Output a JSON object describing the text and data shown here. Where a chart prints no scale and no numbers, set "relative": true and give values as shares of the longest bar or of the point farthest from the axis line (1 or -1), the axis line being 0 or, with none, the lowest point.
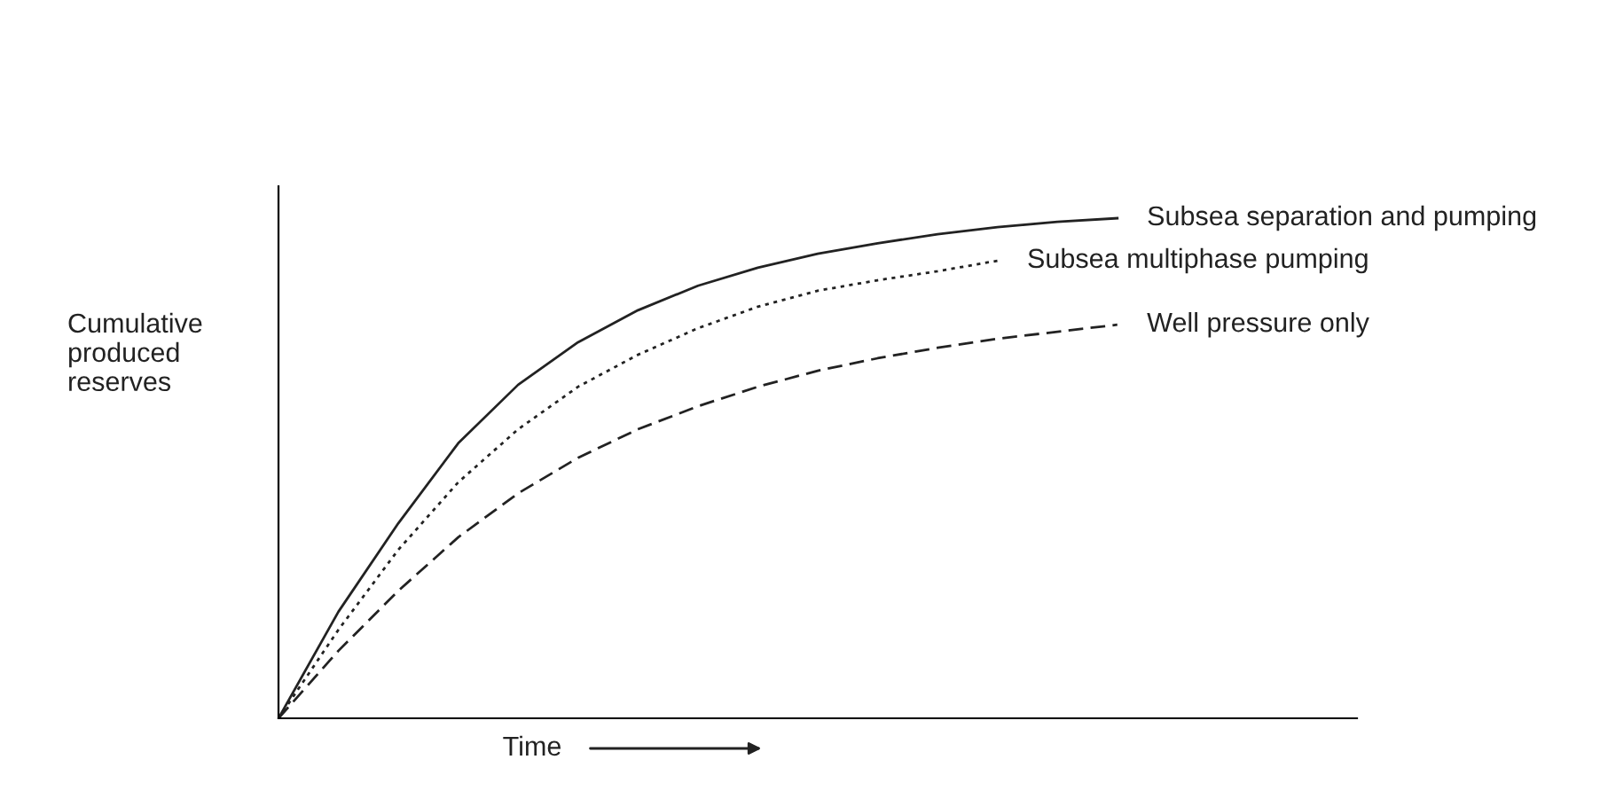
{
  "chart_data": {
    "type": "line",
    "relative": true,
    "xlabel": "Time",
    "ylabel": "Cumulative produced reserves",
    "tick_labels": false,
    "grid": false,
    "legend": false,
    "marker": "none",
    "categories": [
      null,
      null,
      null,
      null,
      null,
      null,
      null,
      null,
      null,
      null,
      null,
      null,
      null,
      null,
      null,
      null,
      null,
      null,
      null
    ],
    "series": [
      {
        "name": "Subsea separation and pumping",
        "color": "#222222",
        "line_style": "solid",
        "values": [
          0,
          0.213,
          0.39,
          0.55,
          0.667,
          0.752,
          0.816,
          0.865,
          0.901,
          0.929,
          0.95,
          0.968,
          0.982,
          0.993,
          1,
          null,
          null,
          null,
          null
        ]
      },
      {
        "name": "Subsea multiphase pumping",
        "color": "#222222",
        "line_style": "dotted",
        "values": [
          0,
          0.177,
          0.337,
          0.472,
          0.578,
          0.663,
          0.727,
          0.78,
          0.823,
          0.855,
          0.876,
          0.894,
          0.915,
          null,
          null,
          null,
          null,
          null,
          null
        ]
      },
      {
        "name": "Well pressure only",
        "color": "#222222",
        "line_style": "dashed",
        "values": [
          0,
          0.135,
          0.255,
          0.362,
          0.45,
          0.521,
          0.578,
          0.624,
          0.663,
          0.695,
          0.72,
          0.741,
          0.759,
          0.773,
          0.787,
          null,
          null,
          null,
          null
        ]
      }
    ]
  }
}
